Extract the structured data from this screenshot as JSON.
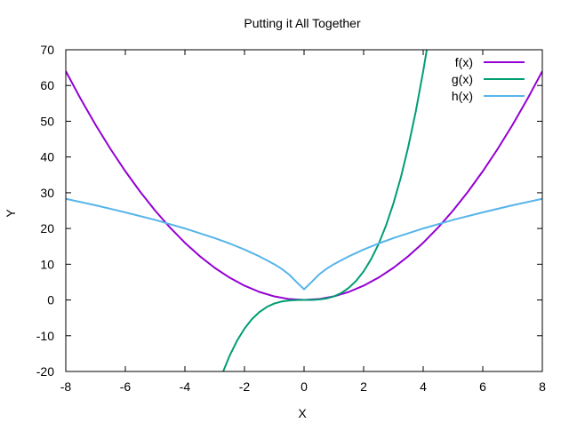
{
  "chart_data": {
    "type": "line",
    "title": "Putting it All Together",
    "xlabel": "X",
    "ylabel": "Y",
    "xlim": [
      -8,
      8
    ],
    "ylim": [
      -20,
      70
    ],
    "xticks": [
      -8,
      -6,
      -4,
      -2,
      0,
      2,
      4,
      6,
      8
    ],
    "yticks": [
      -20,
      -10,
      0,
      10,
      20,
      30,
      40,
      50,
      60,
      70
    ],
    "grid": false,
    "legend_position": "top-right",
    "series": [
      {
        "name": "f(x)",
        "color": "#9400d3",
        "x": [
          -8,
          -7.5,
          -7,
          -6.5,
          -6,
          -5.5,
          -5,
          -4.5,
          -4,
          -3.5,
          -3,
          -2.5,
          -2,
          -1.5,
          -1,
          -0.5,
          0,
          0.5,
          1,
          1.5,
          2,
          2.5,
          3,
          3.5,
          4,
          4.5,
          5,
          5.5,
          6,
          6.5,
          7,
          7.5,
          8
        ],
        "y": [
          64,
          56.25,
          49,
          42.25,
          36,
          30.25,
          25,
          20.25,
          16,
          12.25,
          9,
          6.25,
          4,
          2.25,
          1,
          0.25,
          0,
          0.25,
          1,
          2.25,
          4,
          6.25,
          9,
          12.25,
          16,
          20.25,
          25,
          30.25,
          36,
          42.25,
          49,
          56.25,
          64
        ]
      },
      {
        "name": "g(x)",
        "color": "#009e73",
        "x": [
          -2.72,
          -2.5,
          -2.25,
          -2,
          -1.75,
          -1.5,
          -1.25,
          -1,
          -0.75,
          -0.5,
          -0.25,
          0,
          0.25,
          0.5,
          0.75,
          1,
          1.25,
          1.5,
          1.75,
          2,
          2.25,
          2.5,
          2.75,
          3,
          3.25,
          3.5,
          3.75,
          4,
          4.12
        ],
        "y": [
          -20.1,
          -15.6,
          -11.4,
          -8,
          -5.36,
          -3.38,
          -1.95,
          -1,
          -0.42,
          -0.13,
          -0.02,
          0,
          0.02,
          0.13,
          0.42,
          1,
          1.95,
          3.38,
          5.36,
          8,
          11.4,
          15.6,
          20.8,
          27,
          34.3,
          42.9,
          52.7,
          64,
          70
        ]
      },
      {
        "name": "h(x)",
        "color": "#56b4e9",
        "x": [
          -8,
          -7,
          -6,
          -5,
          -4,
          -3,
          -2.5,
          -2,
          -1.5,
          -1,
          -0.75,
          -0.5,
          -0.25,
          0,
          0.25,
          0.5,
          0.75,
          1,
          1.5,
          2,
          2.5,
          3,
          4,
          5,
          6,
          7,
          8
        ],
        "y": [
          28.3,
          26.5,
          24.5,
          22.4,
          20,
          17.3,
          15.8,
          14.1,
          12.2,
          10,
          8.7,
          7.1,
          5,
          3,
          5,
          7.1,
          8.7,
          10,
          12.2,
          14.1,
          15.8,
          17.3,
          20,
          22.4,
          24.5,
          26.5,
          28.3
        ]
      }
    ]
  }
}
